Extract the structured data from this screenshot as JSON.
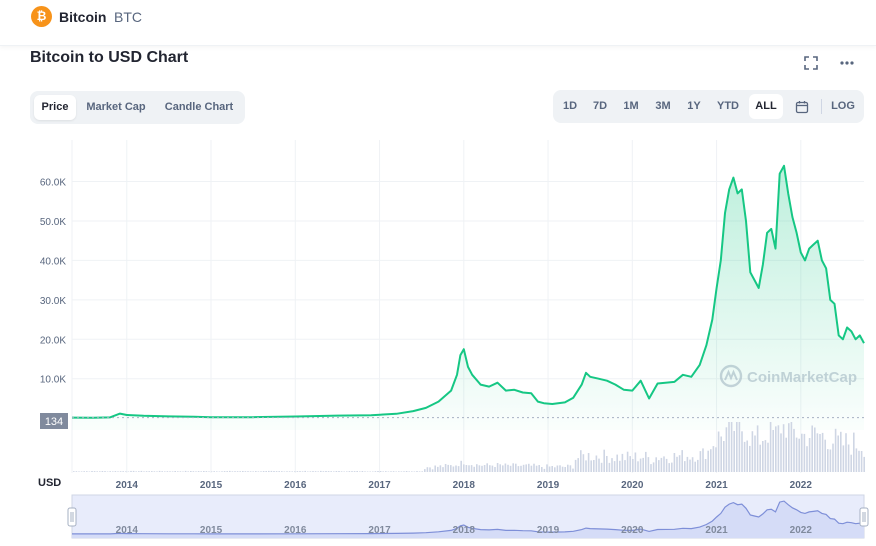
{
  "header": {
    "coin_logo_glyph": "₿",
    "coin_name": "Bitcoin",
    "coin_symbol": "BTC"
  },
  "chart_title": "Bitcoin to USD Chart",
  "icons": [
    "fullscreen-icon",
    "more-options-icon",
    "calendar-icon",
    "coinmarketcap-logo-icon"
  ],
  "tabs": [
    {
      "label": "Price",
      "active": true
    },
    {
      "label": "Market Cap",
      "active": false
    },
    {
      "label": "Candle Chart",
      "active": false
    }
  ],
  "ranges": [
    {
      "label": "1D",
      "active": false
    },
    {
      "label": "7D",
      "active": false
    },
    {
      "label": "1M",
      "active": false
    },
    {
      "label": "3M",
      "active": false
    },
    {
      "label": "1Y",
      "active": false
    },
    {
      "label": "YTD",
      "active": false
    },
    {
      "label": "ALL",
      "active": true
    }
  ],
  "log_label": "LOG",
  "watermark": "CoinMarketCap",
  "colors": {
    "line": "#16c784",
    "volume": "#cfd6e4",
    "navigator_fill": "#e8ecfb",
    "navigator_line": "#7e8fd8",
    "price_tag": "#808a9d"
  },
  "chart_data": {
    "type": "area",
    "title": "Bitcoin to USD Chart",
    "xlabel": "",
    "ylabel": "USD",
    "xlim": [
      2013.35,
      2022.75
    ],
    "ylim": [
      -3000,
      68000
    ],
    "y_ticks": [
      10000,
      20000,
      30000,
      40000,
      50000,
      60000
    ],
    "y_tick_labels": [
      "10.0K",
      "20.0K",
      "30.0K",
      "40.0K",
      "50.0K",
      "60.0K"
    ],
    "x_ticks": [
      2014,
      2015,
      2016,
      2017,
      2018,
      2019,
      2020,
      2021,
      2022
    ],
    "x_tick_labels": [
      "2014",
      "2015",
      "2016",
      "2017",
      "2018",
      "2019",
      "2020",
      "2021",
      "2022"
    ],
    "y_axis_unit_label": "USD",
    "price_tag": "134",
    "price_tag_value": 134,
    "grid": true,
    "series": [
      {
        "x": [
          2013.35,
          2013.6,
          2013.8,
          2013.92,
          2014.0,
          2014.2,
          2014.5,
          2014.8,
          2015.0,
          2015.5,
          2016.0,
          2016.5,
          2016.9,
          2017.2,
          2017.4,
          2017.55,
          2017.7,
          2017.85,
          2017.92,
          2017.96,
          2018.0,
          2018.05,
          2018.1,
          2018.2,
          2018.3,
          2018.4,
          2018.5,
          2018.6,
          2018.7,
          2018.8,
          2018.88,
          2018.95,
          2019.05,
          2019.2,
          2019.3,
          2019.4,
          2019.45,
          2019.5,
          2019.6,
          2019.7,
          2019.8,
          2019.9,
          2020.0,
          2020.1,
          2020.2,
          2020.3,
          2020.5,
          2020.6,
          2020.7,
          2020.8,
          2020.88,
          2020.95,
          2021.0,
          2021.05,
          2021.1,
          2021.15,
          2021.2,
          2021.25,
          2021.3,
          2021.35,
          2021.4,
          2021.45,
          2021.5,
          2021.55,
          2021.6,
          2021.65,
          2021.7,
          2021.75,
          2021.8,
          2021.85,
          2021.9,
          2021.95,
          2022.0,
          2022.05,
          2022.1,
          2022.15,
          2022.2,
          2022.25,
          2022.3,
          2022.35,
          2022.4,
          2022.45,
          2022.5,
          2022.55,
          2022.6,
          2022.65,
          2022.7,
          2022.75
        ],
        "y": [
          134,
          120,
          200,
          1150,
          800,
          600,
          450,
          350,
          250,
          250,
          430,
          650,
          750,
          1100,
          1800,
          2600,
          4200,
          7000,
          11000,
          16000,
          17500,
          13000,
          11000,
          8500,
          8000,
          9000,
          7000,
          7200,
          6500,
          6300,
          4200,
          3800,
          3600,
          4000,
          5200,
          8500,
          11500,
          10500,
          10000,
          9500,
          8500,
          7200,
          7000,
          9500,
          5000,
          8800,
          9200,
          11000,
          10500,
          13500,
          18500,
          25000,
          33000,
          40000,
          52000,
          58000,
          61000,
          57000,
          58000,
          50000,
          37000,
          35000,
          33000,
          39000,
          47000,
          48000,
          43000,
          62000,
          64000,
          57000,
          51000,
          47000,
          42000,
          40000,
          43000,
          44000,
          45000,
          40000,
          38000,
          30000,
          29000,
          21000,
          20000,
          23000,
          22000,
          20000,
          21000,
          19000
        ]
      }
    ]
  }
}
